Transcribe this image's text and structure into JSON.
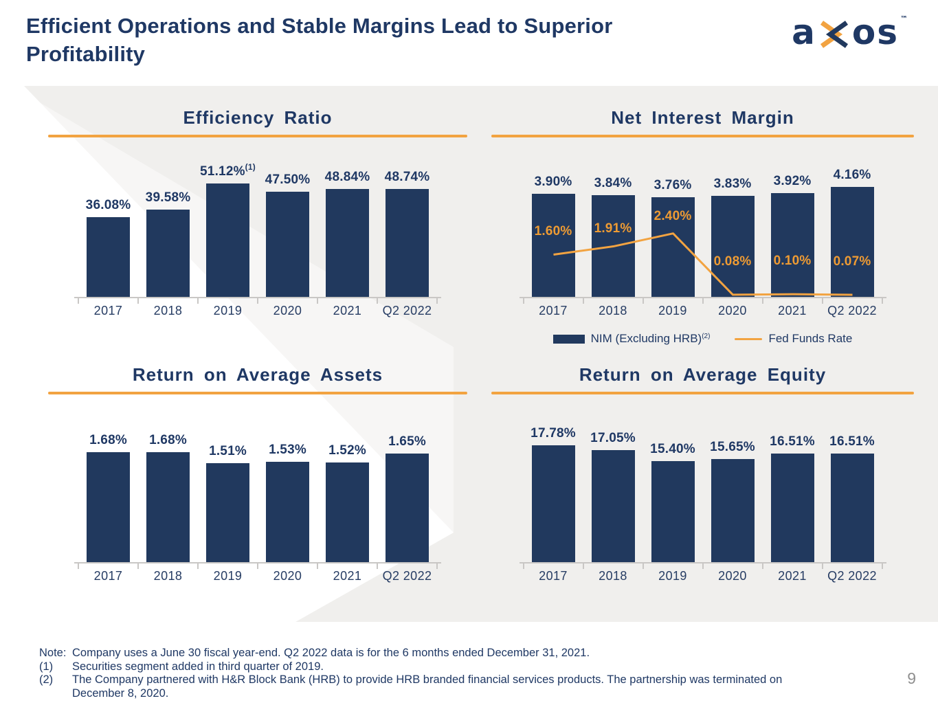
{
  "header": {
    "title": "Efficient Operations and Stable Margins Lead to Superior Profitability",
    "logo": {
      "a": "a",
      "o": "o",
      "s": "s",
      "tm": "™"
    }
  },
  "colors": {
    "navy": "#21395E",
    "navy_text": "#1F3864",
    "orange": "#F2A341",
    "orange_label": "#EE9B33",
    "band_gray": "#F0EFED",
    "axis_gray": "#C9C7C5",
    "page_number_gray": "#8F8F8F"
  },
  "chart_data": [
    {
      "id": "efficiency-ratio",
      "type": "bar",
      "title": "Efficiency Ratio",
      "categories": [
        "2017",
        "2018",
        "2019",
        "2020",
        "2021",
        "Q2 2022"
      ],
      "values": [
        36.08,
        39.58,
        51.12,
        47.5,
        48.84,
        48.74
      ],
      "labels": [
        "36.08%",
        "39.58%",
        "51.12%",
        "47.50%",
        "48.84%",
        "48.74%"
      ],
      "label_sups": [
        "",
        "",
        "(1)",
        "",
        "",
        ""
      ],
      "ylim": [
        0,
        55
      ],
      "grid": false,
      "legend": "none"
    },
    {
      "id": "net-interest-margin",
      "type": "bar+line",
      "title": "Net Interest Margin",
      "categories": [
        "2017",
        "2018",
        "2019",
        "2020",
        "2021",
        "Q2 2022"
      ],
      "series": [
        {
          "name": "NIM (Excluding HRB)",
          "name_sup": "(2)",
          "type": "bar",
          "values": [
            3.9,
            3.84,
            3.76,
            3.83,
            3.92,
            4.16
          ],
          "labels": [
            "3.90%",
            "3.84%",
            "3.76%",
            "3.83%",
            "3.92%",
            "4.16%"
          ]
        },
        {
          "name": "Fed Funds Rate",
          "name_sup": "",
          "type": "line",
          "values": [
            1.6,
            1.91,
            2.4,
            0.08,
            0.1,
            0.07
          ],
          "labels": [
            "1.60%",
            "1.91%",
            "2.40%",
            "0.08%",
            "0.10%",
            "0.07%"
          ]
        }
      ],
      "ylim": [
        0,
        4.6
      ],
      "grid": false,
      "legend": "bottom"
    },
    {
      "id": "return-on-average-assets",
      "type": "bar",
      "title": "Return on Average Assets",
      "categories": [
        "2017",
        "2018",
        "2019",
        "2020",
        "2021",
        "Q2 2022"
      ],
      "values": [
        1.68,
        1.68,
        1.51,
        1.53,
        1.52,
        1.65
      ],
      "labels": [
        "1.68%",
        "1.68%",
        "1.51%",
        "1.53%",
        "1.52%",
        "1.65%"
      ],
      "label_sups": [
        "",
        "",
        "",
        "",
        "",
        ""
      ],
      "ylim": [
        0,
        1.85
      ],
      "grid": false,
      "legend": "none"
    },
    {
      "id": "return-on-average-equity",
      "type": "bar",
      "title": "Return on Average Equity",
      "categories": [
        "2017",
        "2018",
        "2019",
        "2020",
        "2021",
        "Q2 2022"
      ],
      "values": [
        17.78,
        17.05,
        15.4,
        15.65,
        16.51,
        16.51
      ],
      "labels": [
        "17.78%",
        "17.05%",
        "15.40%",
        "15.65%",
        "16.51%",
        "16.51%"
      ],
      "label_sups": [
        "",
        "",
        "",
        "",
        "",
        ""
      ],
      "ylim": [
        0,
        19.5
      ],
      "grid": false,
      "legend": "none"
    }
  ],
  "footer": {
    "note_prefix": "Note:",
    "note": "Company uses a June 30 fiscal year-end. Q2 2022 data is for the 6 months ended December 31, 2021.",
    "footnotes": [
      {
        "prefix": "(1)",
        "text": "Securities segment added in third quarter of 2019."
      },
      {
        "prefix": "(2)",
        "text": "The Company partnered with H&R Block Bank (HRB) to provide HRB branded financial services products. The partnership was terminated on December 8, 2020."
      }
    ],
    "page_number": "9"
  }
}
